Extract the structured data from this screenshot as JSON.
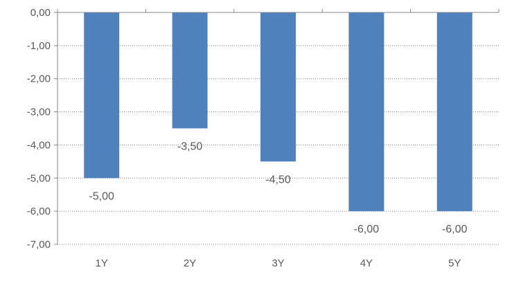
{
  "chart_data": {
    "type": "bar",
    "title": "",
    "xlabel": "",
    "ylabel": "",
    "categories": [
      "1Y",
      "2Y",
      "3Y",
      "4Y",
      "5Y"
    ],
    "values": [
      -5.0,
      -3.5,
      -4.5,
      -6.0,
      -6.0
    ],
    "data_labels": [
      "-5,00",
      "-3,50",
      "-4,50",
      "-6,00",
      "-6,00"
    ],
    "ylim": [
      -7.0,
      0.0
    ],
    "y_ticks": [
      {
        "value": 0,
        "label": "0,00"
      },
      {
        "value": -1,
        "label": "-1,00"
      },
      {
        "value": -2,
        "label": "-2,00"
      },
      {
        "value": -3,
        "label": "-3,00"
      },
      {
        "value": -4,
        "label": "-4,00"
      },
      {
        "value": -5,
        "label": "-5,00"
      },
      {
        "value": -6,
        "label": "-6,00"
      },
      {
        "value": -7,
        "label": "-7,00"
      }
    ],
    "grid": true,
    "grid_style": "dotted",
    "legend": "none",
    "bar_color": "#4f81bd",
    "axis_color": "#868686",
    "grid_color": "#7f7f7f",
    "label_color": "#595959"
  }
}
